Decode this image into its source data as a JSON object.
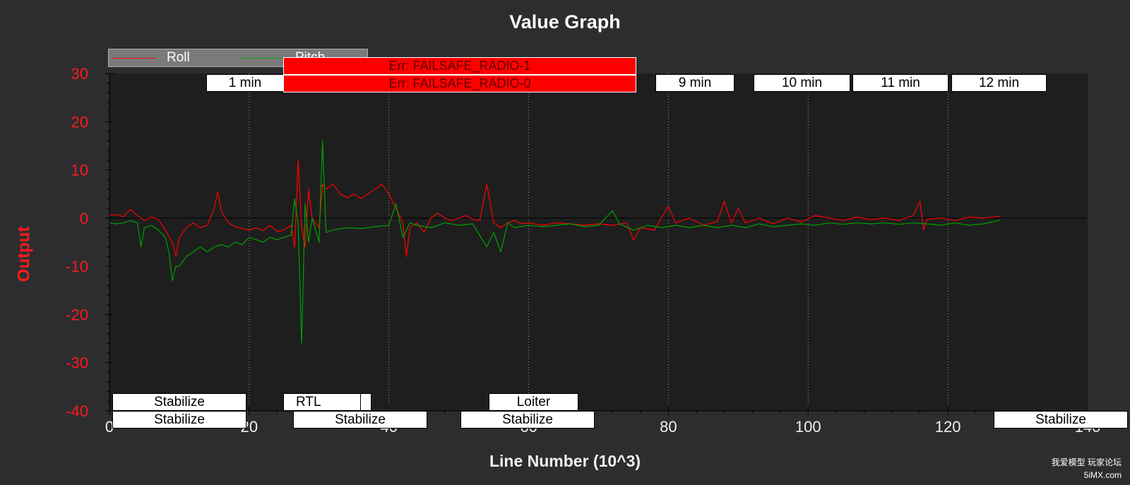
{
  "chart_data": {
    "type": "line",
    "title": "Value Graph",
    "xlabel": "Line Number (10^3)",
    "ylabel": "Output",
    "xlim": [
      0,
      140
    ],
    "ylim": [
      -40,
      30
    ],
    "x_ticks": [
      "0",
      "20",
      "40",
      "60",
      "80",
      "100",
      "120",
      "140"
    ],
    "y_ticks": [
      "30",
      "20",
      "10",
      "0",
      "-10",
      "-20",
      "-30",
      "-40"
    ],
    "grid": "vertical dotted",
    "legend_position": "top-left",
    "series": [
      {
        "name": "Roll",
        "color": "#ff0000",
        "points": [
          [
            0,
            0.6
          ],
          [
            1,
            0.7
          ],
          [
            2,
            0.3
          ],
          [
            3,
            1.8
          ],
          [
            4,
            0.5
          ],
          [
            5,
            -0.5
          ],
          [
            6,
            0.2
          ],
          [
            7,
            -0.3
          ],
          [
            8,
            -2.5
          ],
          [
            9,
            -5
          ],
          [
            9.5,
            -8
          ],
          [
            10,
            -4
          ],
          [
            11,
            -2
          ],
          [
            12,
            -1
          ],
          [
            13,
            -2
          ],
          [
            14,
            -1.5
          ],
          [
            15,
            2
          ],
          [
            15.5,
            5.5
          ],
          [
            16,
            1.5
          ],
          [
            17,
            -1
          ],
          [
            18,
            -1.8
          ],
          [
            19,
            -2.2
          ],
          [
            20,
            -2.5
          ],
          [
            21,
            -2
          ],
          [
            22,
            -2.6
          ],
          [
            23,
            -1.5
          ],
          [
            24,
            -2.8
          ],
          [
            25,
            -2.5
          ],
          [
            26,
            -1.5
          ],
          [
            26.5,
            -6
          ],
          [
            27,
            12
          ],
          [
            27.5,
            -2
          ],
          [
            28,
            -6
          ],
          [
            28.5,
            6
          ],
          [
            29,
            0
          ],
          [
            30,
            -2
          ],
          [
            30.5,
            7
          ],
          [
            31,
            6
          ],
          [
            32,
            7
          ],
          [
            33,
            5
          ],
          [
            34,
            4.2
          ],
          [
            35,
            5
          ],
          [
            36,
            4
          ],
          [
            37,
            5
          ],
          [
            38,
            6
          ],
          [
            39,
            7
          ],
          [
            40,
            5
          ],
          [
            41,
            2
          ],
          [
            42,
            -1
          ],
          [
            42.5,
            -8
          ],
          [
            43,
            -2
          ],
          [
            44,
            -1
          ],
          [
            45,
            -3
          ],
          [
            46,
            0
          ],
          [
            47,
            1
          ],
          [
            48,
            0
          ],
          [
            49,
            -0.5
          ],
          [
            50,
            0
          ],
          [
            51,
            0.5
          ],
          [
            52,
            -0.3
          ],
          [
            53,
            -0.5
          ],
          [
            54,
            7
          ],
          [
            55,
            -1
          ],
          [
            56,
            -2
          ],
          [
            57,
            -1
          ],
          [
            58,
            -0.5
          ],
          [
            59,
            -1.2
          ],
          [
            60,
            -1
          ],
          [
            62,
            -1.5
          ],
          [
            64,
            -1
          ],
          [
            66,
            -1.2
          ],
          [
            68,
            -1.5
          ],
          [
            70,
            -1.2
          ],
          [
            72,
            -1.5
          ],
          [
            74,
            -1
          ],
          [
            75,
            -4.5
          ],
          [
            76,
            -2
          ],
          [
            78,
            -2.5
          ],
          [
            80,
            2.5
          ],
          [
            81,
            -1
          ],
          [
            83,
            0
          ],
          [
            85,
            -1.5
          ],
          [
            87,
            -0.8
          ],
          [
            88,
            3.5
          ],
          [
            89,
            -1
          ],
          [
            90,
            2
          ],
          [
            91,
            -1
          ],
          [
            93,
            0
          ],
          [
            95,
            -1.2
          ],
          [
            97,
            0
          ],
          [
            99,
            -0.8
          ],
          [
            101,
            0.5
          ],
          [
            103,
            0
          ],
          [
            105,
            -0.5
          ],
          [
            107,
            0.2
          ],
          [
            109,
            -0.3
          ],
          [
            111,
            0
          ],
          [
            113,
            -0.5
          ],
          [
            115,
            0.5
          ],
          [
            116,
            3.5
          ],
          [
            116.5,
            -2.5
          ],
          [
            117,
            -0.3
          ],
          [
            119,
            0
          ],
          [
            121,
            -0.5
          ],
          [
            123,
            0.2
          ],
          [
            125,
            0
          ],
          [
            127,
            0.3
          ],
          [
            127.5,
            0.4
          ]
        ]
      },
      {
        "name": "Pitch",
        "color": "#00a000",
        "points": [
          [
            0,
            -1
          ],
          [
            1,
            -1.2
          ],
          [
            2,
            -1
          ],
          [
            3,
            -0.5
          ],
          [
            4,
            -1
          ],
          [
            4.5,
            -6
          ],
          [
            5,
            -2
          ],
          [
            6,
            -1.5
          ],
          [
            7,
            -2.5
          ],
          [
            8,
            -4
          ],
          [
            8.5,
            -7
          ],
          [
            9,
            -13
          ],
          [
            9.5,
            -10
          ],
          [
            10,
            -10
          ],
          [
            11,
            -8
          ],
          [
            12,
            -7
          ],
          [
            13,
            -6
          ],
          [
            14,
            -7
          ],
          [
            15,
            -6
          ],
          [
            16,
            -5.5
          ],
          [
            17,
            -6
          ],
          [
            18,
            -5
          ],
          [
            19,
            -5.5
          ],
          [
            20,
            -4
          ],
          [
            21,
            -4.5
          ],
          [
            22,
            -5
          ],
          [
            23,
            -4
          ],
          [
            24,
            -4.5
          ],
          [
            25,
            -4
          ],
          [
            26,
            -3.5
          ],
          [
            26.5,
            4
          ],
          [
            27,
            -1
          ],
          [
            27.5,
            -26
          ],
          [
            28,
            3
          ],
          [
            28.5,
            -5
          ],
          [
            29,
            0
          ],
          [
            30,
            -5
          ],
          [
            30.5,
            16
          ],
          [
            31,
            -3
          ],
          [
            32,
            -2.5
          ],
          [
            34,
            -2
          ],
          [
            36,
            -2.2
          ],
          [
            38,
            -1.8
          ],
          [
            40,
            -1.5
          ],
          [
            41,
            3
          ],
          [
            42,
            -4
          ],
          [
            43,
            -1
          ],
          [
            44,
            -1.5
          ],
          [
            46,
            -2
          ],
          [
            48,
            -1
          ],
          [
            50,
            -1.5
          ],
          [
            52,
            -1.2
          ],
          [
            54,
            -6
          ],
          [
            55,
            -3
          ],
          [
            56,
            -7
          ],
          [
            57,
            -1
          ],
          [
            58,
            -2
          ],
          [
            60,
            -1.5
          ],
          [
            62,
            -1.8
          ],
          [
            64,
            -1.5
          ],
          [
            66,
            -1.2
          ],
          [
            68,
            -1.8
          ],
          [
            70,
            -1.5
          ],
          [
            72,
            1.5
          ],
          [
            73,
            -1.2
          ],
          [
            75,
            -2.5
          ],
          [
            77,
            -1.5
          ],
          [
            79,
            -2
          ],
          [
            81,
            -1.5
          ],
          [
            83,
            -2
          ],
          [
            85,
            -1.5
          ],
          [
            87,
            -2
          ],
          [
            89,
            -1.5
          ],
          [
            91,
            -2
          ],
          [
            93,
            -1.2
          ],
          [
            95,
            -1.8
          ],
          [
            97,
            -1.5
          ],
          [
            99,
            -1.2
          ],
          [
            101,
            -1.5
          ],
          [
            103,
            -1
          ],
          [
            105,
            -1.3
          ],
          [
            107,
            -1
          ],
          [
            109,
            -1.2
          ],
          [
            111,
            -1
          ],
          [
            113,
            -1.3
          ],
          [
            115,
            -1
          ],
          [
            117,
            -1.2
          ],
          [
            119,
            -1.5
          ],
          [
            121,
            -1
          ],
          [
            123,
            -1.5
          ],
          [
            125,
            -1.2
          ],
          [
            127,
            -0.6
          ],
          [
            127.5,
            -0.4
          ]
        ]
      }
    ],
    "error_annotations": [
      "Err: FAILSAFE_RADIO-1",
      "Err: FAILSAFE_RADIO-0"
    ],
    "time_markers": [
      "1 min",
      "9 min",
      "10 min",
      "11 min",
      "12 min"
    ],
    "mode_labels_row1": [
      "Stabilize",
      "RTL",
      "Loiter"
    ],
    "mode_labels_row2": [
      "Stabilize",
      "Stabilize",
      "Stabilize",
      "Stabilize"
    ]
  },
  "watermark": {
    "line1": "我爱模型 玩家论坛",
    "line2": "5iMX.com"
  }
}
